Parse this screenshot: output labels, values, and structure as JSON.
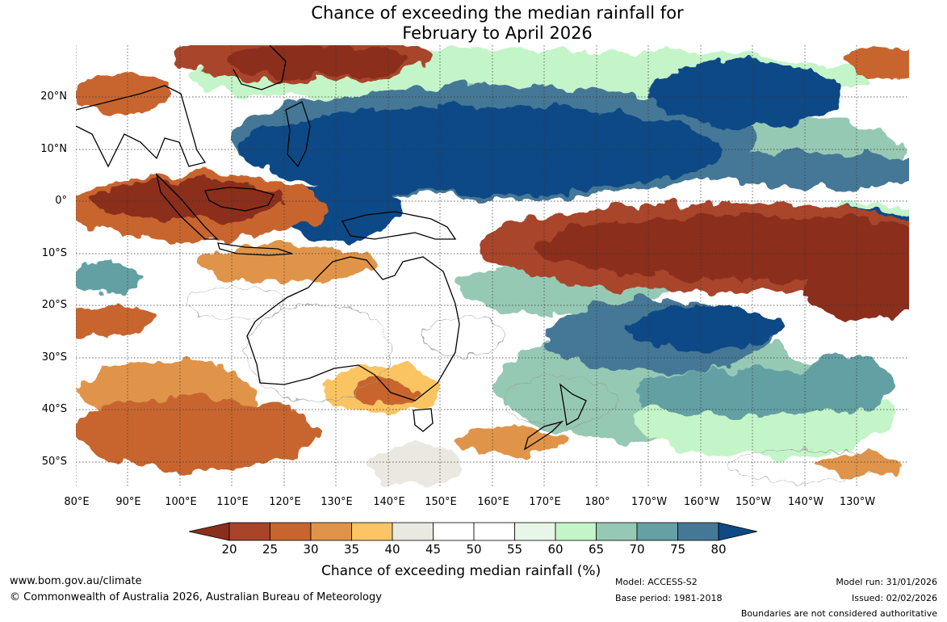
{
  "title": {
    "line1": "Chance of exceeding the median rainfall for",
    "line2": "February to April 2026"
  },
  "map": {
    "latitude_labels": [
      "20°N",
      "10°N",
      "0°",
      "10°S",
      "20°S",
      "30°S",
      "40°S",
      "50°S"
    ],
    "longitude_labels": [
      "80°E",
      "90°E",
      "100°E",
      "110°E",
      "120°E",
      "130°E",
      "140°E",
      "150°E",
      "160°E",
      "170°E",
      "180°",
      "170°W",
      "160°W",
      "150°W",
      "140°W",
      "130°W"
    ]
  },
  "colorbar": {
    "title": "Chance of exceeding median rainfall (%)",
    "ticks": [
      "20",
      "25",
      "30",
      "35",
      "40",
      "45",
      "50",
      "55",
      "60",
      "65",
      "70",
      "75",
      "80"
    ],
    "colors": [
      "#8b2e1c",
      "#a8442a",
      "#c8652f",
      "#e0944a",
      "#fbc464",
      "#ebe8e2",
      "#ffffff",
      "#ffffff",
      "#e8f6e8",
      "#c4f5c8",
      "#96c9b4",
      "#64a0a4",
      "#457896",
      "#0f4a86"
    ]
  },
  "footer": {
    "website": "www.bom.gov.au/climate",
    "copyright": "© Commonwealth of Australia 2026, Australian Bureau of Meteorology",
    "model": "Model: ACCESS-S2",
    "base_period": "Base period: 1981-2018",
    "model_run": "Model run: 31/01/2026",
    "issued": "Issued: 02/02/2026",
    "disclaimer": "Boundaries are not considered authoritative"
  }
}
